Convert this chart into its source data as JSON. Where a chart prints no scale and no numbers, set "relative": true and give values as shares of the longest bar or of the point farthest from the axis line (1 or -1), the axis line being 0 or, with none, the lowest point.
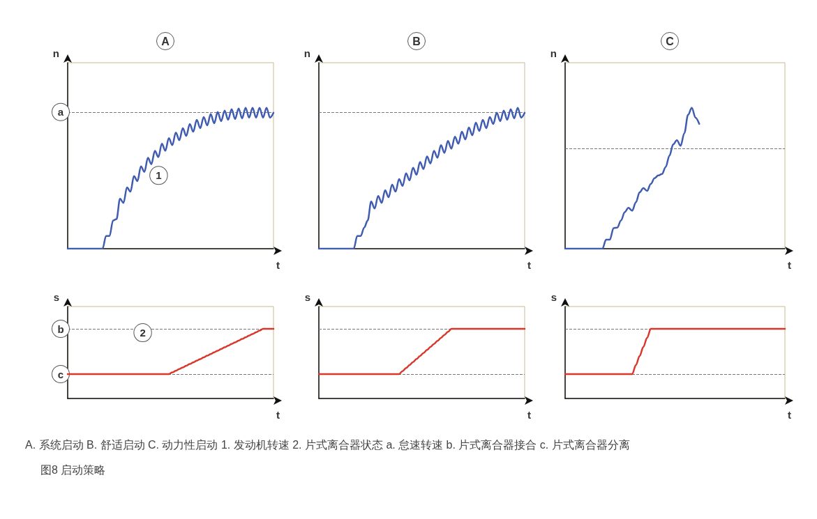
{
  "chart_data": [
    {
      "type": "line",
      "title": "A",
      "ylabel": "n",
      "xlabel": "t",
      "relative": true,
      "grid": false,
      "line_style": "solid",
      "annotations": [
        "1"
      ],
      "categories": [
        null,
        null,
        null,
        null,
        null,
        null,
        null,
        null,
        null,
        null,
        null,
        null,
        null,
        null,
        null,
        null,
        null,
        null,
        null,
        null,
        null,
        null,
        null,
        null,
        null,
        null,
        null,
        null,
        null,
        null,
        null,
        null,
        null,
        null,
        null,
        null,
        null,
        null,
        null,
        null,
        null,
        null,
        null,
        null,
        null,
        null,
        null,
        null,
        null,
        null,
        null,
        null,
        null,
        null,
        null,
        null,
        null,
        null,
        null,
        null
      ],
      "series": [
        {
          "color": "#3f5cb0",
          "values": [
            0,
            0,
            0,
            0,
            0,
            0,
            0,
            0,
            0,
            0,
            0,
            0.09,
            0.09,
            0.2,
            0.21,
            0.355,
            0.325,
            0.435,
            0.405,
            0.515,
            0.48,
            0.585,
            0.545,
            0.645,
            0.6,
            0.695,
            0.65,
            0.745,
            0.695,
            0.785,
            0.735,
            0.825,
            0.77,
            0.855,
            0.8,
            0.885,
            0.83,
            0.915,
            0.855,
            0.935,
            0.875,
            0.955,
            0.89,
            0.97,
            0.905,
            0.98,
            0.915,
            0.99,
            0.92,
            0.995,
            0.925,
            1.0,
            0.93,
            1.0,
            0.93,
            1.0,
            0.93,
            1.0,
            0.93,
            0.965
          ]
        }
      ],
      "ref_lines": [
        {
          "axis": "y",
          "value": 0.97,
          "label": "a",
          "color": "#777777",
          "line_style": "dashed"
        }
      ]
    },
    {
      "type": "line",
      "title": "B",
      "ylabel": "n",
      "xlabel": "t",
      "relative": true,
      "grid": false,
      "line_style": "solid",
      "categories": [
        null,
        null,
        null,
        null,
        null,
        null,
        null,
        null,
        null,
        null,
        null,
        null,
        null,
        null,
        null,
        null,
        null,
        null,
        null,
        null,
        null,
        null,
        null,
        null,
        null,
        null,
        null,
        null,
        null,
        null,
        null,
        null,
        null,
        null,
        null,
        null,
        null,
        null,
        null,
        null,
        null,
        null,
        null,
        null,
        null,
        null,
        null,
        null,
        null,
        null,
        null,
        null,
        null,
        null,
        null,
        null,
        null,
        null,
        null,
        null
      ],
      "series": [
        {
          "color": "#3f5cb0",
          "values": [
            0,
            0,
            0,
            0,
            0,
            0,
            0,
            0,
            0,
            0,
            0,
            0.09,
            0.09,
            0.15,
            0.2,
            0.335,
            0.285,
            0.375,
            0.325,
            0.415,
            0.365,
            0.455,
            0.405,
            0.495,
            0.445,
            0.535,
            0.485,
            0.575,
            0.525,
            0.615,
            0.565,
            0.655,
            0.605,
            0.695,
            0.645,
            0.735,
            0.68,
            0.765,
            0.71,
            0.795,
            0.745,
            0.83,
            0.775,
            0.86,
            0.805,
            0.895,
            0.835,
            0.915,
            0.855,
            0.935,
            0.885,
            0.965,
            0.905,
            0.98,
            0.915,
            0.99,
            0.925,
            1.0,
            0.93,
            0.965
          ]
        }
      ],
      "ref_lines": [
        {
          "axis": "y",
          "value": 0.97,
          "color": "#777777",
          "line_style": "dashed"
        }
      ]
    },
    {
      "type": "line",
      "title": "C",
      "ylabel": "n",
      "xlabel": "t",
      "relative": true,
      "grid": false,
      "line_style": "solid",
      "categories": [
        null,
        null,
        null,
        null,
        null,
        null,
        null,
        null,
        null,
        null,
        null,
        null,
        null,
        null,
        null,
        null,
        null,
        null,
        null,
        null,
        null,
        null,
        null,
        null,
        null,
        null,
        null,
        null,
        null,
        null,
        null,
        null,
        null,
        null,
        null,
        null,
        null,
        null,
        null,
        null,
        null,
        null,
        null,
        null,
        null,
        null,
        null,
        null,
        null,
        null,
        null,
        null,
        null,
        null,
        null,
        null,
        null,
        null,
        null,
        null
      ],
      "series": [
        {
          "color": "#3f5cb0",
          "values": [
            0,
            0,
            0,
            0,
            0,
            0,
            0,
            0,
            0,
            0,
            0,
            0.064,
            0.064,
            0.146,
            0.15,
            0.2,
            0.26,
            0.29,
            0.27,
            0.33,
            0.4,
            0.43,
            0.41,
            0.46,
            0.5,
            0.52,
            0.53,
            0.58,
            0.66,
            0.74,
            0.77,
            0.73,
            0.82,
            0.95,
            1.0,
            0.93,
            0.886,
            null,
            null,
            null,
            null,
            null,
            null,
            null,
            null,
            null,
            null,
            null,
            null,
            null,
            null,
            null,
            null,
            null,
            null,
            null,
            null,
            null,
            null,
            null
          ]
        }
      ],
      "ref_lines": [
        {
          "axis": "y",
          "value": 0.715,
          "color": "#777777",
          "line_style": "dashed"
        }
      ]
    },
    {
      "type": "line",
      "ylabel": "s",
      "xlabel": "t",
      "relative": true,
      "grid": false,
      "line_style": "solid",
      "annotations": [
        "2"
      ],
      "categories": [
        null,
        null,
        null,
        null,
        null,
        null,
        null,
        null,
        null,
        null,
        null,
        null,
        null,
        null,
        null,
        null,
        null,
        null,
        null,
        null,
        null,
        null,
        null,
        null,
        null,
        null,
        null,
        null,
        null,
        null,
        null,
        null,
        null,
        null,
        null,
        null,
        null,
        null,
        null,
        null,
        null,
        null,
        null,
        null,
        null,
        null,
        null,
        null,
        null,
        null,
        null,
        null,
        null,
        null,
        null,
        null,
        null,
        null,
        null,
        null
      ],
      "series": [
        {
          "color": "#d9372b",
          "values": [
            0.35,
            0.35,
            0.35,
            0.35,
            0.35,
            0.35,
            0.35,
            0.35,
            0.35,
            0.35,
            0.35,
            0.35,
            0.35,
            0.35,
            0.35,
            0.35,
            0.35,
            0.35,
            0.35,
            0.35,
            0.35,
            0.35,
            0.35,
            0.35,
            0.35,
            0.35,
            0.35,
            0.35,
            0.35,
            0.35,
            0.374,
            0.398,
            0.422,
            0.446,
            0.47,
            0.494,
            0.518,
            0.542,
            0.566,
            0.59,
            0.614,
            0.638,
            0.662,
            0.686,
            0.71,
            0.734,
            0.758,
            0.782,
            0.806,
            0.83,
            0.854,
            0.878,
            0.902,
            0.926,
            0.95,
            0.974,
            1.0,
            1.0,
            1.0,
            1.0
          ]
        }
      ],
      "ref_lines": [
        {
          "axis": "y",
          "value": 1.0,
          "label": "b",
          "color": "#777777",
          "line_style": "dashed"
        },
        {
          "axis": "y",
          "value": 0.35,
          "label": "c",
          "color": "#777777",
          "line_style": "dashed"
        }
      ]
    },
    {
      "type": "line",
      "ylabel": "s",
      "xlabel": "t",
      "relative": true,
      "grid": false,
      "line_style": "solid",
      "categories": [
        null,
        null,
        null,
        null,
        null,
        null,
        null,
        null,
        null,
        null,
        null,
        null,
        null,
        null,
        null,
        null,
        null,
        null,
        null,
        null,
        null,
        null,
        null,
        null,
        null,
        null,
        null,
        null,
        null,
        null,
        null,
        null,
        null,
        null,
        null,
        null,
        null,
        null,
        null,
        null,
        null,
        null,
        null,
        null,
        null,
        null,
        null,
        null,
        null,
        null,
        null,
        null,
        null,
        null,
        null,
        null,
        null,
        null,
        null,
        null
      ],
      "series": [
        {
          "color": "#d9372b",
          "values": [
            0.35,
            0.35,
            0.35,
            0.35,
            0.35,
            0.35,
            0.35,
            0.35,
            0.35,
            0.35,
            0.35,
            0.35,
            0.35,
            0.35,
            0.35,
            0.35,
            0.35,
            0.35,
            0.35,
            0.35,
            0.35,
            0.35,
            0.35,
            0.35,
            0.393,
            0.437,
            0.48,
            0.523,
            0.567,
            0.61,
            0.653,
            0.697,
            0.74,
            0.783,
            0.827,
            0.87,
            0.913,
            0.957,
            1.0,
            1.0,
            1.0,
            1.0,
            1.0,
            1.0,
            1.0,
            1.0,
            1.0,
            1.0,
            1.0,
            1.0,
            1.0,
            1.0,
            1.0,
            1.0,
            1.0,
            1.0,
            1.0,
            1.0,
            1.0,
            1.0
          ]
        }
      ],
      "ref_lines": [
        {
          "axis": "y",
          "value": 1.0,
          "color": "#777777",
          "line_style": "dashed"
        },
        {
          "axis": "y",
          "value": 0.35,
          "color": "#777777",
          "line_style": "dashed"
        }
      ]
    },
    {
      "type": "line",
      "ylabel": "s",
      "xlabel": "t",
      "relative": true,
      "grid": false,
      "line_style": "solid",
      "categories": [
        null,
        null,
        null,
        null,
        null,
        null,
        null,
        null,
        null,
        null,
        null,
        null,
        null,
        null,
        null,
        null,
        null,
        null,
        null,
        null,
        null,
        null,
        null,
        null,
        null,
        null,
        null,
        null,
        null,
        null,
        null,
        null,
        null,
        null,
        null,
        null,
        null,
        null,
        null,
        null,
        null,
        null,
        null,
        null,
        null,
        null,
        null,
        null,
        null,
        null,
        null,
        null,
        null,
        null,
        null,
        null,
        null,
        null,
        null,
        null
      ],
      "series": [
        {
          "color": "#d9372b",
          "values": [
            0.35,
            0.35,
            0.35,
            0.35,
            0.35,
            0.35,
            0.35,
            0.35,
            0.35,
            0.35,
            0.35,
            0.35,
            0.35,
            0.35,
            0.35,
            0.35,
            0.35,
            0.35,
            0.35,
            0.48,
            0.61,
            0.74,
            0.87,
            1.0,
            1.0,
            1.0,
            1.0,
            1.0,
            1.0,
            1.0,
            1.0,
            1.0,
            1.0,
            1.0,
            1.0,
            1.0,
            1.0,
            1.0,
            1.0,
            1.0,
            1.0,
            1.0,
            1.0,
            1.0,
            1.0,
            1.0,
            1.0,
            1.0,
            1.0,
            1.0,
            1.0,
            1.0,
            1.0,
            1.0,
            1.0,
            1.0,
            1.0,
            1.0,
            1.0,
            1.0
          ]
        }
      ],
      "ref_lines": [
        {
          "axis": "y",
          "value": 1.0,
          "color": "#777777",
          "line_style": "dashed"
        },
        {
          "axis": "y",
          "value": 0.35,
          "color": "#777777",
          "line_style": "dashed"
        }
      ]
    },
    {
      "type": "other",
      "annotations": [
        "A. 系统启动 B. 舒适启动 C. 动力性启动 1. 发动机转速 2. 片式离合器状态 a. 怠速转速 b. 片式离合器接合 c. 片式离合器分离",
        "图8 启动策略"
      ]
    }
  ]
}
